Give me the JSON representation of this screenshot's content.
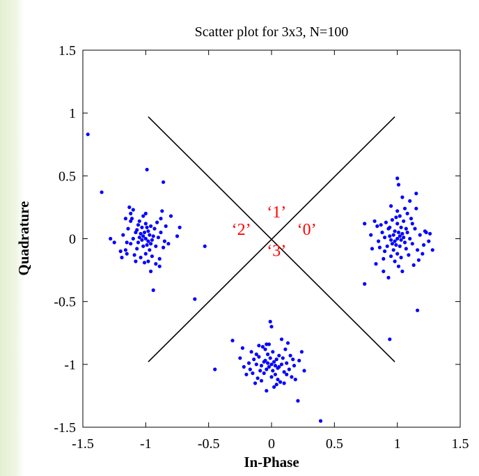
{
  "chart_data": {
    "type": "scatter",
    "title": "Scatter plot for 3x3, N=100",
    "xlabel": "In-Phase",
    "ylabel": "Quadrature",
    "xlim": [
      -1.5,
      1.5
    ],
    "ylim": [
      -1.5,
      1.5
    ],
    "xticks": [
      -1.5,
      -1,
      -0.5,
      0,
      0.5,
      1,
      1.5
    ],
    "xtick_labels": [
      "-1.5",
      "-1",
      "-0.5",
      "0",
      "0.5",
      "1",
      "1.5"
    ],
    "yticks": [
      -1.5,
      -1,
      -0.5,
      0,
      0.5,
      1,
      1.5
    ],
    "ytick_labels": [
      "-1.5",
      "-1",
      "-0.5",
      "0",
      "0.5",
      "1",
      "1.5"
    ],
    "grid": false,
    "point_color": "#0000ff",
    "decision_lines": [
      {
        "x": [
          -0.98,
          0.98
        ],
        "y": [
          0.97,
          -0.98
        ]
      },
      {
        "x": [
          -0.98,
          0.98
        ],
        "y": [
          -0.98,
          0.97
        ]
      }
    ],
    "annotations": [
      {
        "text": "‘1’",
        "x": 0.04,
        "y": 0.17,
        "color": "#ff0000"
      },
      {
        "text": "‘2’",
        "x": -0.24,
        "y": 0.03,
        "color": "#ff0000"
      },
      {
        "text": "‘0’",
        "x": 0.28,
        "y": 0.03,
        "color": "#ff0000"
      },
      {
        "text": "‘3’",
        "x": 0.04,
        "y": -0.14,
        "color": "#ff0000"
      }
    ],
    "series": [
      {
        "values": [
          [
            1.0,
            0.0
          ],
          [
            1.02,
            0.02
          ],
          [
            0.98,
            -0.02
          ],
          [
            1.03,
            -0.01
          ],
          [
            0.97,
            0.03
          ],
          [
            1.01,
            0.05
          ],
          [
            0.99,
            -0.05
          ],
          [
            1.05,
            0.01
          ],
          [
            0.95,
            -0.01
          ],
          [
            1.04,
            0.04
          ],
          [
            0.96,
            -0.04
          ],
          [
            1.02,
            -0.06
          ],
          [
            0.98,
            0.06
          ],
          [
            1.06,
            -0.03
          ],
          [
            0.94,
            0.02
          ],
          [
            1.08,
            0.05
          ],
          [
            0.92,
            -0.06
          ],
          [
            1.03,
            0.09
          ],
          [
            0.97,
            -0.09
          ],
          [
            1.1,
            0.0
          ],
          [
            0.9,
            0.01
          ],
          [
            1.07,
            -0.08
          ],
          [
            0.93,
            0.08
          ],
          [
            1.0,
            0.12
          ],
          [
            1.0,
            -0.12
          ],
          [
            1.12,
            -0.04
          ],
          [
            0.88,
            0.05
          ],
          [
            1.05,
            0.14
          ],
          [
            0.95,
            -0.14
          ],
          [
            1.14,
            0.08
          ],
          [
            0.86,
            -0.07
          ],
          [
            1.09,
            -0.13
          ],
          [
            0.91,
            0.13
          ],
          [
            1.16,
            -0.09
          ],
          [
            0.84,
            0.1
          ],
          [
            1.02,
            0.18
          ],
          [
            0.98,
            -0.18
          ],
          [
            1.18,
            0.03
          ],
          [
            0.85,
            -0.02
          ],
          [
            1.11,
            0.16
          ],
          [
            0.89,
            -0.16
          ],
          [
            1.0,
            0.22
          ],
          [
            1.01,
            -0.22
          ],
          [
            1.2,
            -0.12
          ],
          [
            0.82,
            0.14
          ],
          [
            1.22,
            0.06
          ],
          [
            0.8,
            -0.08
          ],
          [
            1.06,
            0.24
          ],
          [
            1.04,
            -0.26
          ],
          [
            1.25,
            -0.02
          ],
          [
            1.28,
            -0.09
          ],
          [
            1.26,
            0.04
          ],
          [
            1.23,
            0.05
          ],
          [
            0.79,
            0.03
          ],
          [
            1.15,
            0.24
          ],
          [
            0.83,
            -0.2
          ],
          [
            1.04,
            0.33
          ],
          [
            1.01,
            0.43
          ],
          [
            1.0,
            0.48
          ],
          [
            0.74,
            0.12
          ],
          [
            0.74,
            -0.36
          ],
          [
            1.15,
            0.36
          ],
          [
            0.95,
            0.26
          ],
          [
            1.1,
            0.3
          ],
          [
            0.93,
            -0.31
          ],
          [
            0.94,
            -0.8
          ],
          [
            1.16,
            -0.57
          ],
          [
            0.89,
            -0.26
          ],
          [
            0.99,
            0.17
          ],
          [
            1.12,
            0.12
          ],
          [
            0.87,
            0.11
          ],
          [
            1.17,
            -0.17
          ],
          [
            1.21,
            -0.05
          ],
          [
            0.94,
            0.09
          ],
          [
            1.07,
            0.08
          ],
          [
            0.96,
            0.15
          ],
          [
            1.03,
            -0.15
          ],
          [
            1.13,
            -0.21
          ],
          [
            0.9,
            -0.1
          ],
          [
            1.08,
            0.2
          ],
          [
            -1.0,
            0.0
          ],
          [
            -1.02,
            0.02
          ],
          [
            -0.98,
            -0.02
          ],
          [
            -1.03,
            -0.01
          ],
          [
            -0.97,
            0.03
          ],
          [
            -1.01,
            0.05
          ],
          [
            -0.99,
            -0.05
          ],
          [
            -1.05,
            0.01
          ],
          [
            -0.95,
            -0.01
          ],
          [
            -1.04,
            0.04
          ],
          [
            -0.96,
            -0.04
          ],
          [
            -1.02,
            -0.06
          ],
          [
            -0.98,
            0.06
          ],
          [
            -1.06,
            -0.03
          ],
          [
            -0.94,
            0.02
          ],
          [
            -1.08,
            0.05
          ],
          [
            -0.92,
            -0.06
          ],
          [
            -1.03,
            0.09
          ],
          [
            -0.97,
            -0.09
          ],
          [
            -1.1,
            0.0
          ],
          [
            -0.9,
            0.01
          ],
          [
            -1.07,
            -0.08
          ],
          [
            -0.93,
            0.08
          ],
          [
            -1.0,
            0.12
          ],
          [
            -1.0,
            -0.12
          ],
          [
            -1.12,
            -0.04
          ],
          [
            -0.88,
            0.05
          ],
          [
            -1.05,
            0.14
          ],
          [
            -0.95,
            -0.14
          ],
          [
            -1.14,
            0.08
          ],
          [
            -0.86,
            -0.07
          ],
          [
            -1.09,
            -0.13
          ],
          [
            -0.91,
            0.13
          ],
          [
            -1.16,
            -0.09
          ],
          [
            -0.84,
            0.1
          ],
          [
            -1.02,
            0.18
          ],
          [
            -0.98,
            -0.18
          ],
          [
            -1.18,
            0.03
          ],
          [
            -0.85,
            -0.02
          ],
          [
            -1.11,
            0.16
          ],
          [
            -0.89,
            -0.16
          ],
          [
            -1.13,
            0.25
          ],
          [
            -1.12,
            0.2
          ],
          [
            -1.1,
            0.23
          ],
          [
            -1.25,
            -0.03
          ],
          [
            -1.2,
            -0.1
          ],
          [
            -1.19,
            -0.15
          ],
          [
            -1.28,
            0.0
          ],
          [
            -1.15,
            -0.12
          ],
          [
            -0.8,
            0.18
          ],
          [
            -0.75,
            0.02
          ],
          [
            -0.73,
            0.09
          ],
          [
            -0.86,
            0.45
          ],
          [
            -0.99,
            0.55
          ],
          [
            -1.16,
            0.16
          ],
          [
            -1.08,
            -0.18
          ],
          [
            -0.96,
            -0.26
          ],
          [
            -0.94,
            -0.41
          ],
          [
            -0.89,
            -0.22
          ],
          [
            -0.82,
            -0.04
          ],
          [
            -1.0,
            0.2
          ],
          [
            -1.06,
            0.11
          ],
          [
            -0.96,
            0.1
          ],
          [
            -1.01,
            -0.19
          ],
          [
            -1.15,
            -0.03
          ],
          [
            -1.35,
            0.37
          ],
          [
            -1.46,
            0.83
          ],
          [
            -0.61,
            -0.48
          ],
          [
            -0.53,
            -0.06
          ],
          [
            -0.87,
            0.22
          ],
          [
            -1.12,
            0.14
          ],
          [
            -0.92,
            -0.2
          ],
          [
            -1.04,
            -0.15
          ],
          [
            -0.99,
            0.09
          ],
          [
            -1.07,
            0.07
          ],
          [
            -0.88,
            0.16
          ],
          [
            0.0,
            -1.0
          ],
          [
            0.02,
            -0.98
          ],
          [
            -0.02,
            -1.02
          ],
          [
            0.03,
            -1.01
          ],
          [
            -0.03,
            -0.99
          ],
          [
            0.05,
            -1.03
          ],
          [
            -0.05,
            -0.97
          ],
          [
            0.01,
            -1.05
          ],
          [
            -0.01,
            -0.95
          ],
          [
            0.04,
            -0.96
          ],
          [
            -0.04,
            -1.04
          ],
          [
            0.06,
            -1.02
          ],
          [
            -0.06,
            -0.98
          ],
          [
            0.08,
            -1.0
          ],
          [
            -0.08,
            -1.01
          ],
          [
            0.03,
            -1.08
          ],
          [
            -0.03,
            -0.92
          ],
          [
            0.09,
            -0.95
          ],
          [
            -0.09,
            -1.05
          ],
          [
            0.0,
            -1.1
          ],
          [
            0.01,
            -0.9
          ],
          [
            0.1,
            -1.06
          ],
          [
            -0.1,
            -0.94
          ],
          [
            0.12,
            -0.99
          ],
          [
            -0.12,
            -1.0
          ],
          [
            0.05,
            -1.12
          ],
          [
            -0.05,
            -0.88
          ],
          [
            0.14,
            -1.04
          ],
          [
            -0.14,
            -0.96
          ],
          [
            0.07,
            -1.14
          ],
          [
            -0.07,
            -0.86
          ],
          [
            0.15,
            -0.93
          ],
          [
            -0.15,
            -1.07
          ],
          [
            0.11,
            -0.88
          ],
          [
            -0.11,
            -1.11
          ],
          [
            0.18,
            -1.01
          ],
          [
            -0.18,
            -0.99
          ],
          [
            0.02,
            -1.18
          ],
          [
            -0.02,
            -0.84
          ],
          [
            0.16,
            -1.1
          ],
          [
            -0.16,
            -0.9
          ],
          [
            0.22,
            -0.97
          ],
          [
            -0.22,
            -1.02
          ],
          [
            -0.04,
            -1.21
          ],
          [
            0.0,
            -0.7
          ],
          [
            -0.01,
            -0.66
          ],
          [
            -0.31,
            -0.81
          ],
          [
            -0.25,
            -0.95
          ],
          [
            -0.23,
            -0.87
          ],
          [
            -0.45,
            -1.04
          ],
          [
            0.26,
            -1.05
          ],
          [
            0.21,
            -1.29
          ],
          [
            0.39,
            -1.45
          ],
          [
            0.08,
            -0.8
          ],
          [
            0.19,
            -1.12
          ],
          [
            -0.2,
            -1.08
          ],
          [
            0.13,
            -0.83
          ],
          [
            -0.13,
            -1.15
          ],
          [
            0.24,
            -0.9
          ],
          [
            -0.08,
            -1.13
          ],
          [
            0.06,
            -0.93
          ],
          [
            -0.06,
            -1.07
          ],
          [
            0.1,
            -1.15
          ],
          [
            -0.1,
            -0.85
          ],
          [
            0.17,
            -0.96
          ],
          [
            -0.17,
            -1.04
          ],
          [
            0.04,
            -1.16
          ],
          [
            -0.04,
            -0.84
          ],
          [
            0.12,
            -1.08
          ],
          [
            -0.12,
            -0.92
          ]
        ]
      }
    ]
  }
}
